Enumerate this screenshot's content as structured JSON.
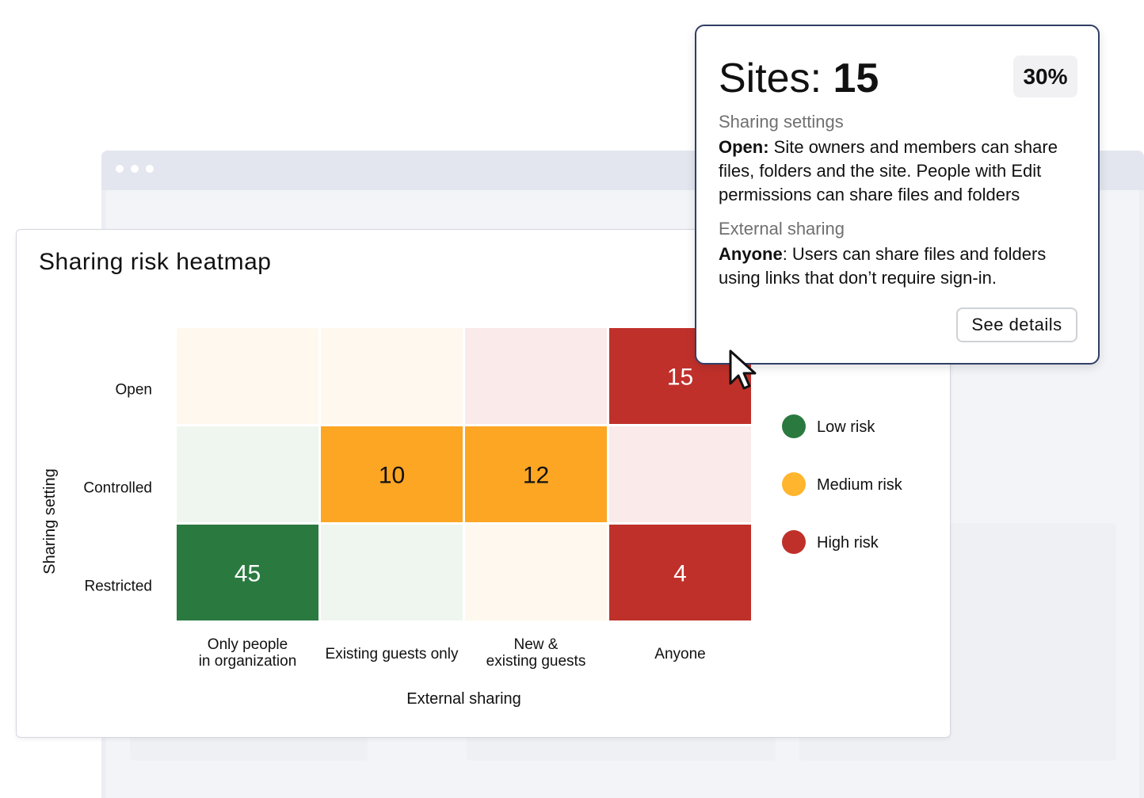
{
  "card": {
    "title": "Sharing risk heatmap"
  },
  "chart_data": {
    "type": "heatmap",
    "title": "Sharing risk heatmap",
    "xlabel": "External sharing",
    "ylabel": "Sharing setting",
    "x_categories": [
      "Only people in organization",
      "Existing guests only",
      "New & existing guests",
      "Anyone"
    ],
    "y_categories": [
      "Open",
      "Controlled",
      "Restricted"
    ],
    "values": [
      [
        null,
        null,
        null,
        15
      ],
      [
        null,
        10,
        12,
        null
      ],
      [
        45,
        null,
        null,
        4
      ]
    ],
    "risk_levels": [
      [
        "medium",
        "medium",
        "high",
        "high"
      ],
      [
        "low",
        "medium",
        "medium",
        "high"
      ],
      [
        "low",
        "low",
        "medium",
        "high"
      ]
    ],
    "legend": [
      {
        "label": "Low risk",
        "level": "low",
        "color": "#2a7a40"
      },
      {
        "label": "Medium risk",
        "level": "medium",
        "color": "#ffb52d"
      },
      {
        "label": "High risk",
        "level": "high",
        "color": "#c0302a"
      }
    ],
    "legend_position": "right",
    "colors": {
      "low": {
        "strong": "#2a7a40",
        "light": "#eff6ef",
        "text": "#ffffff"
      },
      "medium": {
        "strong": "#fca624",
        "light": "#fff8ee",
        "text": "#111111"
      },
      "high": {
        "strong": "#c0302a",
        "light": "#fbeaea",
        "text": "#ffffff"
      }
    }
  },
  "tooltip": {
    "label": "Sites:",
    "count": "15",
    "percent": "30%",
    "sections": [
      {
        "label": "Sharing settings",
        "term": "Open:",
        "text": " Site owners and members can share files, folders and the site. People with Edit permissions can share files and folders"
      },
      {
        "label": "External sharing",
        "term": "Anyone",
        "text": ": Users can share files and folders using links that don’t require sign-in."
      }
    ],
    "button_label": "See details"
  }
}
